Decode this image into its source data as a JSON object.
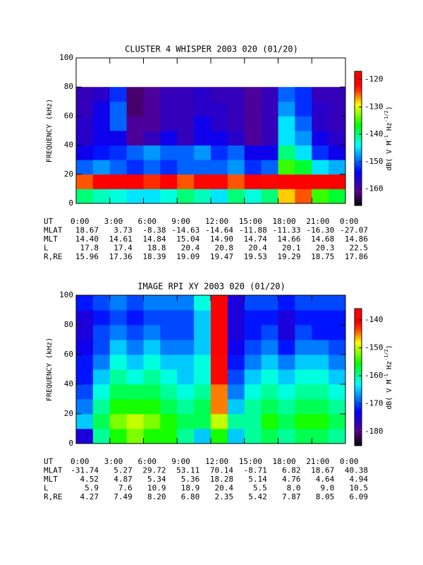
{
  "chart_data": [
    {
      "type": "heatmap",
      "title": "CLUSTER 4 WHISPER 2003 020 (01/20)",
      "ylabel": "FREQUENCY (kHz)",
      "xlim": [
        0,
        24
      ],
      "xticks": [
        {
          "value": 0,
          "label": "0:00"
        },
        {
          "value": 3,
          "label": "3:00"
        },
        {
          "value": 6,
          "label": "6:00"
        },
        {
          "value": 9,
          "label": "9:00"
        },
        {
          "value": 12,
          "label": "12:00"
        },
        {
          "value": 15,
          "label": "15:00"
        },
        {
          "value": 18,
          "label": "18:00"
        },
        {
          "value": 21,
          "label": "21:00"
        },
        {
          "value": 24,
          "label": "0:00"
        }
      ],
      "ylim": [
        0,
        100
      ],
      "yticks": [
        0,
        20,
        40,
        60,
        80,
        100
      ],
      "x_bins": [
        0,
        1.5,
        3,
        4.5,
        6,
        7.5,
        9,
        10.5,
        12,
        13.5,
        15,
        16.5,
        18,
        19.5,
        21,
        22.5,
        24
      ],
      "y_bins": [
        0,
        10,
        20,
        30,
        40,
        50,
        60,
        70,
        80
      ],
      "values": [
        [
          -140,
          -142,
          -143,
          -145,
          -145,
          -143,
          -140,
          -142,
          -145,
          -140,
          -143,
          -140,
          -128,
          -125,
          -135,
          -138
        ],
        [
          -125,
          -122,
          -121,
          -122,
          -124,
          -122,
          -125,
          -123,
          -123,
          -125,
          -122,
          -123,
          -120,
          -120,
          -122,
          -121
        ],
        [
          -150,
          -148,
          -150,
          -152,
          -150,
          -152,
          -150,
          -150,
          -150,
          -148,
          -152,
          -150,
          -135,
          -138,
          -145,
          -147
        ],
        [
          -155,
          -153,
          -152,
          -150,
          -148,
          -150,
          -150,
          -148,
          -152,
          -150,
          -155,
          -155,
          -140,
          -145,
          -152,
          -155
        ],
        [
          -157,
          -155,
          -155,
          -160,
          -158,
          -155,
          -158,
          -155,
          -155,
          -157,
          -160,
          -158,
          -145,
          -148,
          -155,
          -157
        ],
        [
          -157,
          -155,
          -150,
          -160,
          -160,
          -158,
          -158,
          -155,
          -157,
          -158,
          -160,
          -158,
          -145,
          -150,
          -157,
          -158
        ],
        [
          -158,
          -155,
          -150,
          -162,
          -160,
          -158,
          -158,
          -157,
          -157,
          -158,
          -160,
          -158,
          -148,
          -152,
          -157,
          -158
        ],
        [
          -158,
          -157,
          -152,
          -162,
          -160,
          -158,
          -158,
          -157,
          -158,
          -158,
          -160,
          -158,
          -150,
          -152,
          -158,
          -158
        ]
      ],
      "clim": [
        -166,
        -117
      ],
      "cticks": [
        -120,
        -130,
        -140,
        -150,
        -160
      ],
      "colorbar_label": [
        "dB( V M",
        "-1",
        " Hz",
        "-1/2",
        ")"
      ],
      "xlabel": "UT",
      "ephemeris": [
        {
          "name": "MLAT",
          "values": [
            "18.67",
            "3.73",
            "-8.38",
            "-14.63",
            "-14.64",
            "-11.88",
            "-11.33",
            "-16.30",
            "-27.07"
          ]
        },
        {
          "name": "MLT",
          "values": [
            "14.40",
            "14.61",
            "14.84",
            "15.04",
            "14.90",
            "14.74",
            "14.66",
            "14.68",
            "14.86"
          ]
        },
        {
          "name": "L",
          "values": [
            "17.8",
            "17.4",
            "18.8",
            "20.4",
            "20.8",
            "20.4",
            "20.1",
            "20.3",
            "22.5"
          ]
        },
        {
          "name": "R,RE",
          "values": [
            "15.96",
            "17.36",
            "18.39",
            "19.09",
            "19.47",
            "19.53",
            "19.29",
            "18.75",
            "17.86"
          ]
        }
      ]
    },
    {
      "type": "heatmap",
      "title": "IMAGE RPI XY 2003 020 (01/20)",
      "ylabel": "FREQUENCY (kHz)",
      "xlim": [
        0,
        24
      ],
      "xticks": [
        {
          "value": 0,
          "label": "0:00"
        },
        {
          "value": 3,
          "label": "3:00"
        },
        {
          "value": 6,
          "label": "6:00"
        },
        {
          "value": 9,
          "label": "9:00"
        },
        {
          "value": 12,
          "label": "12:00"
        },
        {
          "value": 15,
          "label": "15:00"
        },
        {
          "value": 18,
          "label": "18:00"
        },
        {
          "value": 21,
          "label": "21:00"
        },
        {
          "value": 24,
          "label": "0:00"
        }
      ],
      "ylim": [
        0,
        100
      ],
      "yticks": [
        0,
        20,
        40,
        60,
        80,
        100
      ],
      "x_bins": [
        0,
        1.5,
        3,
        4.5,
        6,
        7.5,
        9,
        10.5,
        12,
        13.5,
        15,
        16.5,
        18,
        19.5,
        21,
        22.5,
        24
      ],
      "y_bins": [
        0,
        10,
        20,
        30,
        40,
        50,
        60,
        70,
        80,
        90,
        100
      ],
      "values": [
        [
          -175,
          -160,
          -155,
          -152,
          -155,
          -155,
          -160,
          -165,
          -155,
          -165,
          -160,
          -158,
          -160,
          -158,
          -158,
          -160
        ],
        [
          -165,
          -158,
          -152,
          -150,
          -152,
          -155,
          -158,
          -158,
          -150,
          -160,
          -160,
          -155,
          -158,
          -155,
          -155,
          -158
        ],
        [
          -168,
          -160,
          -155,
          -155,
          -155,
          -158,
          -160,
          -158,
          -145,
          -165,
          -160,
          -158,
          -160,
          -158,
          -158,
          -160
        ],
        [
          -170,
          -162,
          -158,
          -158,
          -158,
          -160,
          -162,
          -160,
          -145,
          -168,
          -162,
          -160,
          -162,
          -160,
          -160,
          -162
        ],
        [
          -172,
          -165,
          -160,
          -162,
          -160,
          -162,
          -165,
          -162,
          -142,
          -170,
          -165,
          -162,
          -165,
          -162,
          -162,
          -165
        ],
        [
          -172,
          -168,
          -162,
          -165,
          -162,
          -165,
          -165,
          -162,
          -142,
          -172,
          -168,
          -165,
          -168,
          -165,
          -165,
          -168
        ],
        [
          -174,
          -170,
          -165,
          -168,
          -165,
          -168,
          -168,
          -165,
          -140,
          -174,
          -170,
          -168,
          -172,
          -168,
          -168,
          -170
        ],
        [
          -175,
          -170,
          -168,
          -170,
          -168,
          -170,
          -170,
          -165,
          -140,
          -175,
          -172,
          -170,
          -175,
          -170,
          -172,
          -172
        ],
        [
          -175,
          -172,
          -170,
          -172,
          -170,
          -170,
          -170,
          -165,
          -140,
          -175,
          -172,
          -172,
          -175,
          -172,
          -172,
          -172
        ],
        [
          -172,
          -170,
          -168,
          -170,
          -168,
          -168,
          -168,
          -162,
          -140,
          -175,
          -170,
          -170,
          -172,
          -170,
          -170,
          -170
        ]
      ],
      "clim": [
        -185,
        -136
      ],
      "cticks": [
        -140,
        -150,
        -160,
        -170,
        -180
      ],
      "colorbar_label": [
        "dB( V M",
        "-1",
        " Hz",
        "-1/2",
        ")"
      ],
      "xlabel": "UT",
      "ephemeris": [
        {
          "name": "MLAT",
          "values": [
            "-31.74",
            "5.27",
            "29.72",
            "53.11",
            "70.14",
            "-8.71",
            "6.82",
            "18.67",
            "40.38"
          ]
        },
        {
          "name": "MLT",
          "values": [
            "4.52",
            "4.87",
            "5.34",
            "5.36",
            "18.28",
            "5.14",
            "4.76",
            "4.64",
            "4.94"
          ]
        },
        {
          "name": "L",
          "values": [
            "5.9",
            "7.6",
            "10.9",
            "18.9",
            "20.4",
            "5.5",
            "8.0",
            "9.0",
            "10.5"
          ]
        },
        {
          "name": "R,RE",
          "values": [
            "4.27",
            "7.49",
            "8.20",
            "6.80",
            "2.35",
            "5.42",
            "7.87",
            "8.05",
            "6.09"
          ]
        }
      ]
    }
  ]
}
